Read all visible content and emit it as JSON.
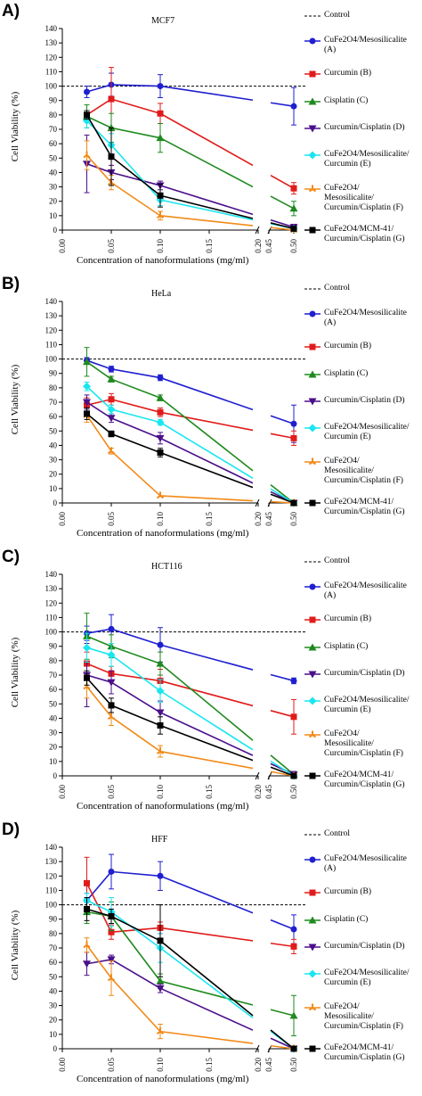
{
  "x_tick_labels": [
    "0.00",
    "0.05",
    "0.10",
    "0.15",
    "0.20",
    "0.45",
    "0.50"
  ],
  "y_tick_labels": [
    "0",
    "10",
    "20",
    "30",
    "40",
    "50",
    "60",
    "70",
    "80",
    "90",
    "100",
    "110",
    "120",
    "130",
    "140"
  ],
  "ylabel": "Cell Viability (%)",
  "xlabel": "Concentration of nanoformulations (mg/ml)",
  "legend": [
    {
      "text": "Control",
      "color": "#000000",
      "marker": "dash"
    },
    {
      "text": "CuFe2O4/Mesosilicalite\n(A)",
      "color": "#1f1fd0",
      "marker": "circle"
    },
    {
      "text": "Curcumin (B)",
      "color": "#e11b1b",
      "marker": "square"
    },
    {
      "text": "Cisplatin (C)",
      "color": "#1f8a1f",
      "marker": "triangle-up"
    },
    {
      "text": "Curcumin/Cisplatin (D)",
      "color": "#4b0f8a",
      "marker": "triangle-down"
    },
    {
      "text": "CuFe2O4/Mesosilicalite/\nCurcumin (E)",
      "color": "#19e6f0",
      "marker": "diamond"
    },
    {
      "text": "CuFe2O4/\nMesosilicalite/\nCurcumin/Cisplatin (F)",
      "color": "#f28a19",
      "marker": "tri"
    },
    {
      "text": "CuFe2O4/MCM-41/\nCurcumin/Cisplatin (G)",
      "color": "#000000",
      "marker": "square"
    }
  ],
  "chart_data": [
    {
      "panel_label": "A)",
      "title": "MCF7",
      "type": "line",
      "x": [
        0.025,
        0.05,
        0.1,
        0.5
      ],
      "ylim": [
        0,
        140
      ],
      "control": 100,
      "series": [
        {
          "name": "CuFe2O4/Mesosilicalite (A)",
          "values": [
            96,
            101,
            100,
            86
          ],
          "errors": [
            4,
            8,
            8,
            13
          ]
        },
        {
          "name": "Curcumin (B)",
          "values": [
            80,
            91,
            81,
            29
          ],
          "errors": [
            3,
            22,
            7,
            4
          ]
        },
        {
          "name": "Cisplatin (C)",
          "values": [
            79,
            71,
            64,
            15
          ],
          "errors": [
            8,
            10,
            10,
            5
          ]
        },
        {
          "name": "Curcumin/Cisplatin (D)",
          "values": [
            46,
            40,
            31,
            2
          ],
          "errors": [
            20,
            5,
            3,
            2
          ]
        },
        {
          "name": "CuFe2O4/Mesosilicalite/Curcumin (E)",
          "values": [
            76,
            59,
            21,
            1
          ],
          "errors": [
            5,
            8,
            4,
            1
          ]
        },
        {
          "name": "CuFe2O4/Mesosilicalite/Curcumin/Cisplatin (F)",
          "values": [
            52,
            33,
            10,
            0
          ],
          "errors": [
            10,
            5,
            3,
            1
          ]
        },
        {
          "name": "CuFe2O4/MCM-41/Curcumin/Cisplatin (G)",
          "values": [
            80,
            51,
            24,
            1
          ],
          "errors": [
            3,
            20,
            8,
            1
          ]
        }
      ]
    },
    {
      "panel_label": "B)",
      "title": "HeLa",
      "type": "line",
      "x": [
        0.025,
        0.05,
        0.1,
        0.5
      ],
      "ylim": [
        0,
        140
      ],
      "control": 100,
      "series": [
        {
          "name": "CuFe2O4/Mesosilicalite (A)",
          "values": [
            99,
            93,
            87,
            55
          ],
          "errors": [
            2,
            2,
            2,
            13
          ]
        },
        {
          "name": "Curcumin (B)",
          "values": [
            68,
            72,
            63,
            45
          ],
          "errors": [
            5,
            4,
            3,
            5
          ]
        },
        {
          "name": "Cisplatin (C)",
          "values": [
            98,
            86,
            73,
            0
          ],
          "errors": [
            10,
            2,
            2,
            1
          ]
        },
        {
          "name": "Curcumin/Cisplatin (D)",
          "values": [
            70,
            59,
            45,
            0
          ],
          "errors": [
            5,
            3,
            4,
            1
          ]
        },
        {
          "name": "CuFe2O4/Mesosilicalite/Curcumin (E)",
          "values": [
            81,
            65,
            56,
            0
          ],
          "errors": [
            3,
            3,
            2,
            1
          ]
        },
        {
          "name": "CuFe2O4/Mesosilicalite/Curcumin/Cisplatin (F)",
          "values": [
            61,
            36,
            5,
            0
          ],
          "errors": [
            5,
            2,
            1,
            1
          ]
        },
        {
          "name": "CuFe2O4/MCM-41/Curcumin/Cisplatin (G)",
          "values": [
            62,
            48,
            35,
            0
          ],
          "errors": [
            4,
            2,
            3,
            1
          ]
        }
      ]
    },
    {
      "panel_label": "C)",
      "title": "HCT116",
      "type": "line",
      "x": [
        0.025,
        0.05,
        0.1,
        0.5
      ],
      "ylim": [
        0,
        140
      ],
      "control": 100,
      "series": [
        {
          "name": "CuFe2O4/Mesosilicalite (A)",
          "values": [
            99,
            102,
            91,
            66
          ],
          "errors": [
            5,
            10,
            12,
            2
          ]
        },
        {
          "name": "Curcumin (B)",
          "values": [
            78,
            71,
            66,
            41
          ],
          "errors": [
            8,
            5,
            8,
            12
          ]
        },
        {
          "name": "Cisplatin (C)",
          "values": [
            97,
            90,
            78,
            1
          ],
          "errors": [
            16,
            8,
            8,
            2
          ]
        },
        {
          "name": "Curcumin/Cisplatin (D)",
          "values": [
            70,
            65,
            44,
            1
          ],
          "errors": [
            22,
            8,
            8,
            2
          ]
        },
        {
          "name": "CuFe2O4/Mesosilicalite/Curcumin (E)",
          "values": [
            89,
            84,
            59,
            0
          ],
          "errors": [
            10,
            8,
            8,
            1
          ]
        },
        {
          "name": "CuFe2O4/Mesosilicalite/Curcumin/Cisplatin (F)",
          "values": [
            62,
            41,
            17,
            0
          ],
          "errors": [
            8,
            6,
            4,
            1
          ]
        },
        {
          "name": "CuFe2O4/MCM-41/Curcumin/Cisplatin (G)",
          "values": [
            68,
            49,
            35,
            0
          ],
          "errors": [
            5,
            5,
            6,
            1
          ]
        }
      ]
    },
    {
      "panel_label": "D)",
      "title": "HFF",
      "type": "line",
      "x": [
        0.025,
        0.05,
        0.1,
        0.5
      ],
      "ylim": [
        0,
        140
      ],
      "control": 100,
      "series": [
        {
          "name": "CuFe2O4/Mesosilicalite (A)",
          "values": [
            103,
            123,
            120,
            83
          ],
          "errors": [
            5,
            12,
            10,
            10
          ]
        },
        {
          "name": "Curcumin (B)",
          "values": [
            115,
            81,
            84,
            71
          ],
          "errors": [
            18,
            5,
            4,
            5
          ]
        },
        {
          "name": "Cisplatin (C)",
          "values": [
            95,
            92,
            47,
            23
          ],
          "errors": [
            8,
            10,
            5,
            14
          ]
        },
        {
          "name": "Curcumin/Cisplatin (D)",
          "values": [
            59,
            62,
            42,
            0
          ],
          "errors": [
            8,
            3,
            3,
            1
          ]
        },
        {
          "name": "CuFe2O4/Mesosilicalite/Curcumin (E)",
          "values": [
            103,
            95,
            70,
            0
          ],
          "errors": [
            5,
            10,
            10,
            1
          ]
        },
        {
          "name": "CuFe2O4/Mesosilicalite/Curcumin/Cisplatin (F)",
          "values": [
            72,
            49,
            12,
            0
          ],
          "errors": [
            5,
            12,
            5,
            1
          ]
        },
        {
          "name": "CuFe2O4/MCM-41/Curcumin/Cisplatin (G)",
          "values": [
            97,
            92,
            75,
            0
          ],
          "errors": [
            8,
            5,
            25,
            1
          ]
        }
      ]
    }
  ]
}
